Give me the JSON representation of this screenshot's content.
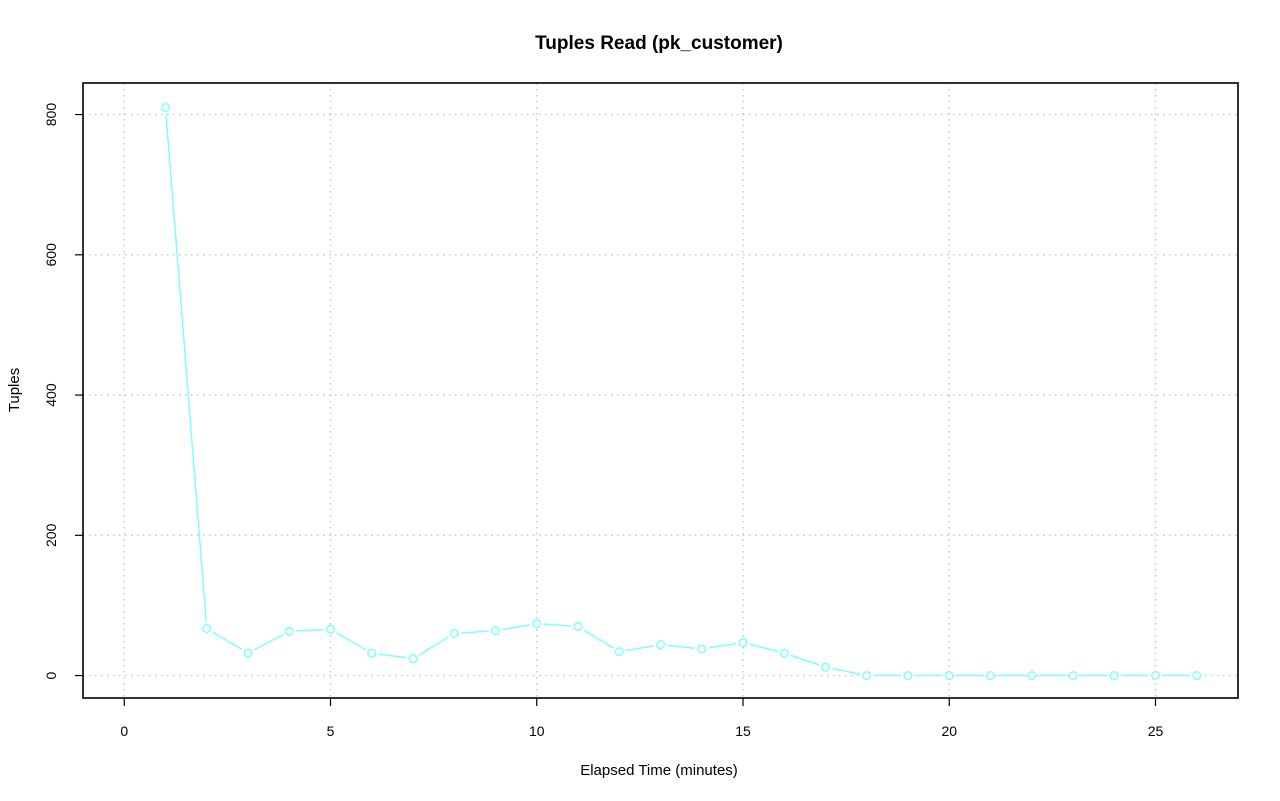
{
  "chart_data": {
    "type": "line",
    "title": "Tuples Read (pk_customer)",
    "xlabel": "Elapsed Time (minutes)",
    "ylabel": "Tuples",
    "xlim": [
      -1,
      27
    ],
    "ylim": [
      -32,
      845
    ],
    "x_ticks": [
      0,
      5,
      10,
      15,
      20,
      25
    ],
    "y_ticks": [
      0,
      200,
      400,
      600,
      800
    ],
    "grid": true,
    "color": "#7fffff",
    "x": [
      1,
      2,
      3,
      4,
      5,
      6,
      7,
      8,
      9,
      10,
      11,
      12,
      13,
      14,
      15,
      16,
      17,
      18,
      19,
      20,
      21,
      22,
      23,
      24,
      25,
      26
    ],
    "values": [
      810,
      67,
      32,
      63,
      66,
      32,
      24,
      60,
      64,
      74,
      70,
      34,
      44,
      38,
      47,
      32,
      12,
      0,
      0,
      0,
      0,
      0,
      0,
      0,
      0,
      0
    ]
  }
}
